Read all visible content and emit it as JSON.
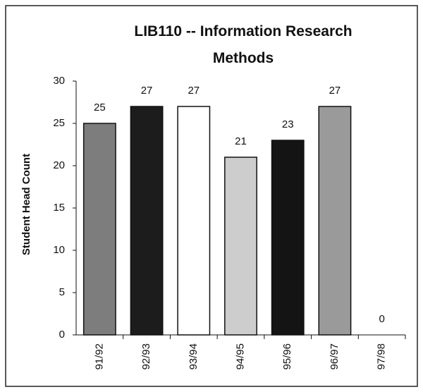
{
  "chart_data": {
    "type": "bar",
    "title": "LIB110 -- Information Research Methods",
    "y_label": "Student Head Count",
    "categories": [
      "91/92",
      "92/93",
      "93/94",
      "94/95",
      "95/96",
      "96/97",
      "97/98"
    ],
    "values": [
      25,
      27,
      27,
      21,
      23,
      27,
      0
    ],
    "colors": [
      "#7d7d7d",
      "#1c1c1c",
      "#ffffff",
      "#cdcdcd",
      "#141414",
      "#9a9a9a",
      "#ffffff"
    ],
    "ylim": [
      0,
      30
    ],
    "yticks": [
      0,
      5,
      10,
      15,
      20,
      25,
      30
    ],
    "grid": false
  }
}
